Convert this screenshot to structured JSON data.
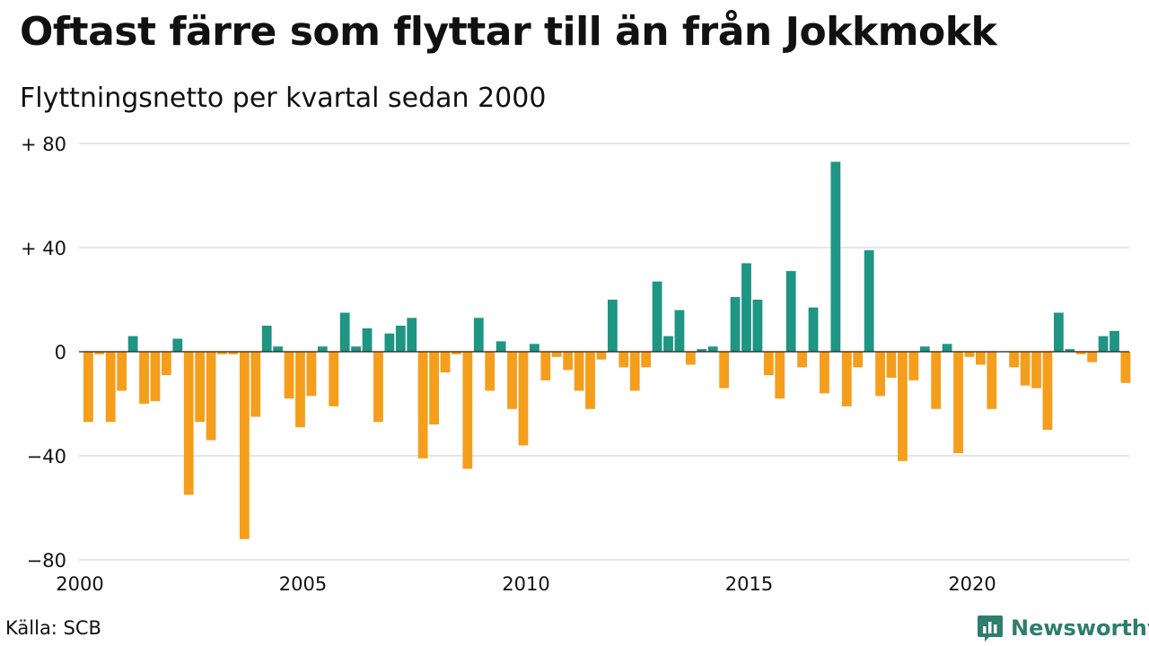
{
  "title": "Oftast färre som flyttar till än från Jokkmokk",
  "subtitle": "Flyttningsnetto per kvartal sedan 2000",
  "source": "Källa: SCB",
  "brand": {
    "name": "Newsworthy",
    "icon": "newsworthy-logo-icon"
  },
  "colors": {
    "positive": "#1f9583",
    "negative": "#f59e1c",
    "grid": "#dddddd",
    "brand": "#2e7d6f"
  },
  "chart_data": {
    "type": "bar",
    "x_start": "2000 Q1",
    "frequency": "quarterly",
    "ylim": [
      -80,
      80
    ],
    "yticks": [
      80,
      40,
      0,
      -40,
      -80
    ],
    "ytick_labels": [
      "+ 80",
      "+ 40",
      "0",
      "−40",
      "−80"
    ],
    "xticks": [
      "2000",
      "2005",
      "2010",
      "2015",
      "2020"
    ],
    "grid": true,
    "values": [
      -27,
      -1,
      -27,
      -15,
      6,
      -20,
      -19,
      -9,
      5,
      -55,
      -27,
      -34,
      -1,
      -1,
      -72,
      -25,
      10,
      2,
      -18,
      -29,
      -17,
      2,
      -21,
      15,
      2,
      9,
      -27,
      7,
      10,
      13,
      -41,
      -28,
      -8,
      -1,
      -45,
      13,
      -15,
      4,
      -22,
      -36,
      3,
      -11,
      -2,
      -7,
      -15,
      -22,
      -3,
      20,
      -6,
      -15,
      -6,
      27,
      6,
      16,
      -5,
      1,
      2,
      -14,
      21,
      34,
      20,
      -9,
      -18,
      31,
      -6,
      17,
      -16,
      73,
      -21,
      -6,
      39,
      -17,
      -10,
      -42,
      -11,
      2,
      -22,
      3,
      -39,
      -2,
      -5,
      -22,
      0,
      -6,
      -13,
      -14,
      -30,
      15,
      1,
      -1,
      -4,
      6,
      8,
      -12
    ]
  }
}
